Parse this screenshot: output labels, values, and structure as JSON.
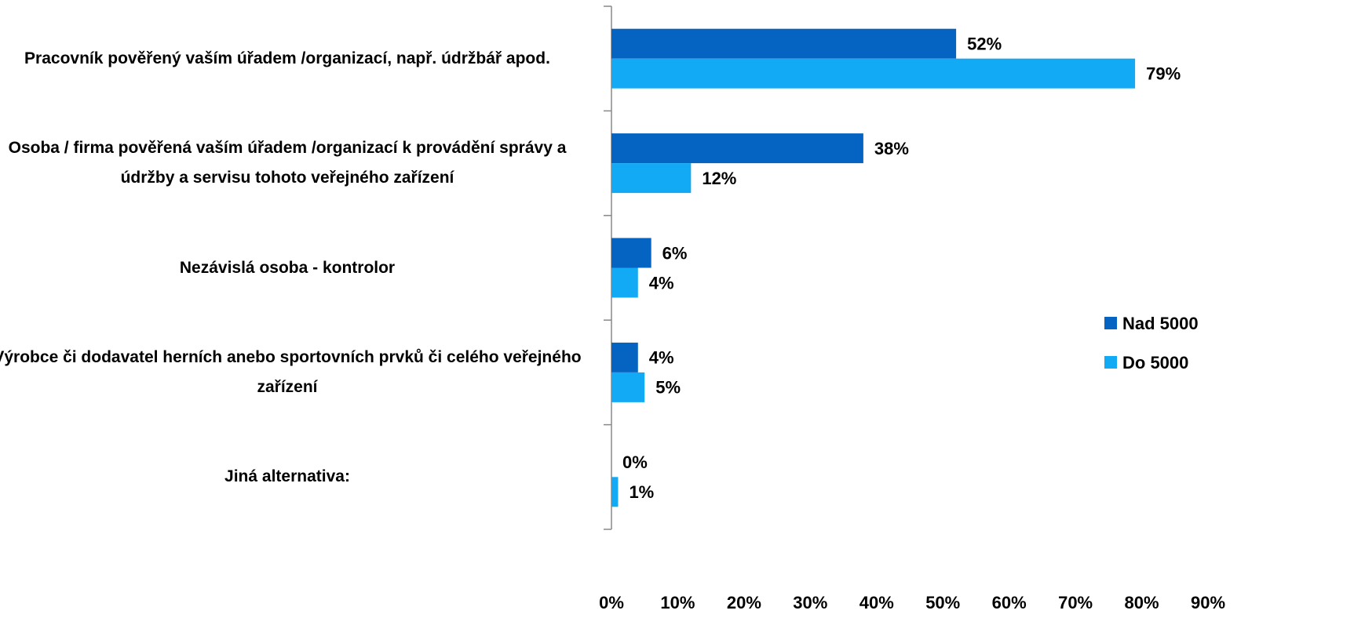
{
  "chart_data": {
    "type": "hbar",
    "categories": [
      "Pracovník pověřený vaším úřadem /organizací, např. údržbář apod.",
      "Osoba / firma pověřená vaším úřadem /organizací k provádění správy a údržby a servisu tohoto veřejného zařízení",
      "Nezávislá osoba - kontrolor",
      "Výrobce či dodavatel herních anebo sportovních prvků či celého veřejného zařízení",
      "Jiná alternativa:"
    ],
    "series": [
      {
        "name": "Nad 5000",
        "color": "#0563c1",
        "values": [
          52,
          38,
          6,
          4,
          0
        ],
        "value_labels": [
          "52%",
          "38%",
          "6%",
          "4%",
          "0%"
        ]
      },
      {
        "name": "Do 5000",
        "color": "#12a9f5",
        "values": [
          79,
          12,
          4,
          5,
          1
        ],
        "value_labels": [
          "79%",
          "12%",
          "4%",
          "5%",
          "1%"
        ]
      }
    ],
    "xlim": [
      0,
      90
    ],
    "xticks": [
      {
        "value": 0,
        "label": "0%"
      },
      {
        "value": 10,
        "label": "10%"
      },
      {
        "value": 20,
        "label": "20%"
      },
      {
        "value": 30,
        "label": "30%"
      },
      {
        "value": 40,
        "label": "40%"
      },
      {
        "value": 50,
        "label": "50%"
      },
      {
        "value": 60,
        "label": "60%"
      },
      {
        "value": 70,
        "label": "70%"
      },
      {
        "value": 80,
        "label": "80%"
      },
      {
        "value": 90,
        "label": "90%"
      }
    ],
    "legend": "right"
  }
}
